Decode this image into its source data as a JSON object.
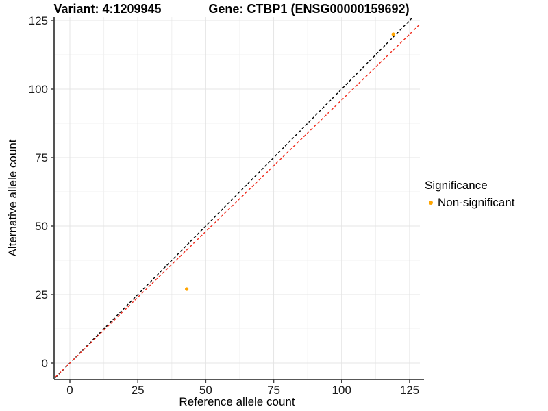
{
  "title": {
    "variant": "Variant: 4:1209945",
    "gene": "Gene: CTBP1 (ENSG00000159692)"
  },
  "chart_data": {
    "type": "scatter",
    "xlabel": "Reference allele count",
    "ylabel": "Alternative allele count",
    "xlim": [
      -5.8,
      128.8
    ],
    "ylim": [
      -6,
      126.25
    ],
    "xticks": [
      0,
      25,
      50,
      75,
      100,
      125
    ],
    "yticks": [
      0,
      25,
      50,
      75,
      100,
      125
    ],
    "grid": {
      "major": true,
      "minor": true
    },
    "series": [
      {
        "name": "Non-significant",
        "color": "#FFA500",
        "points": [
          {
            "x": 43,
            "y": 27
          },
          {
            "x": 119,
            "y": 120
          }
        ]
      }
    ],
    "reference_lines": [
      {
        "name": "identity-line",
        "slope": 1.0,
        "intercept": 0,
        "color": "#000000",
        "style": "dashed"
      },
      {
        "name": "fit-line",
        "slope": 0.96,
        "intercept": 0,
        "color": "#F02B1D",
        "style": "dashed"
      }
    ],
    "legend": {
      "title": "Significance",
      "position": "right",
      "entries": [
        {
          "label": "Non-significant",
          "color": "#FFA500"
        }
      ]
    },
    "colors": {
      "grid_major": "#E4E4E4",
      "grid_minor": "#F0F0F0",
      "axis_line": "#404040",
      "tick_label": "#1A1A1A",
      "background": "#FFFFFF"
    }
  }
}
